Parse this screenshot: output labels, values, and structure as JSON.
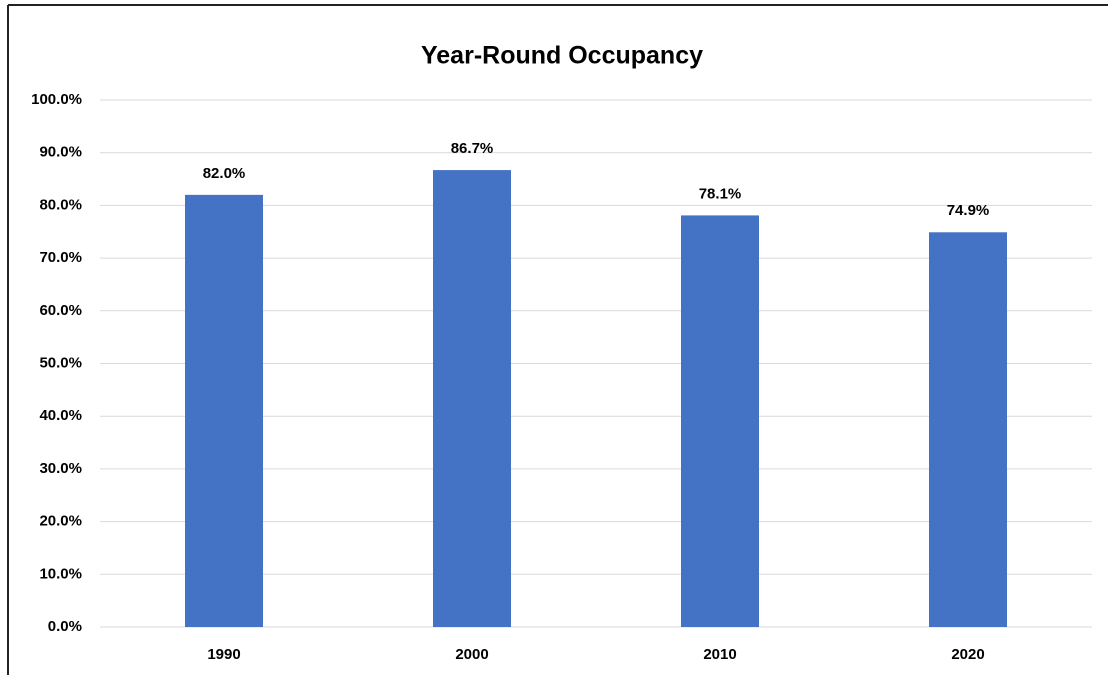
{
  "chart_data": {
    "type": "bar",
    "title": "Year-Round Occupancy",
    "categories": [
      "1990",
      "2000",
      "2010",
      "2020"
    ],
    "values": [
      82.0,
      86.7,
      78.1,
      74.9
    ],
    "value_labels": [
      "82.0%",
      "86.7%",
      "78.1%",
      "74.9%"
    ],
    "color": "#4472c4",
    "ylim": [
      0,
      100
    ],
    "yticks": [
      {
        "value": 0,
        "label": "0.0%"
      },
      {
        "value": 10,
        "label": "10.0%"
      },
      {
        "value": 20,
        "label": "20.0%"
      },
      {
        "value": 30,
        "label": "30.0%"
      },
      {
        "value": 40,
        "label": "40.0%"
      },
      {
        "value": 50,
        "label": "50.0%"
      },
      {
        "value": 60,
        "label": "60.0%"
      },
      {
        "value": 70,
        "label": "70.0%"
      },
      {
        "value": 80,
        "label": "80.0%"
      },
      {
        "value": 90,
        "label": "90.0%"
      },
      {
        "value": 100,
        "label": "100.0%"
      }
    ],
    "grid": true
  }
}
